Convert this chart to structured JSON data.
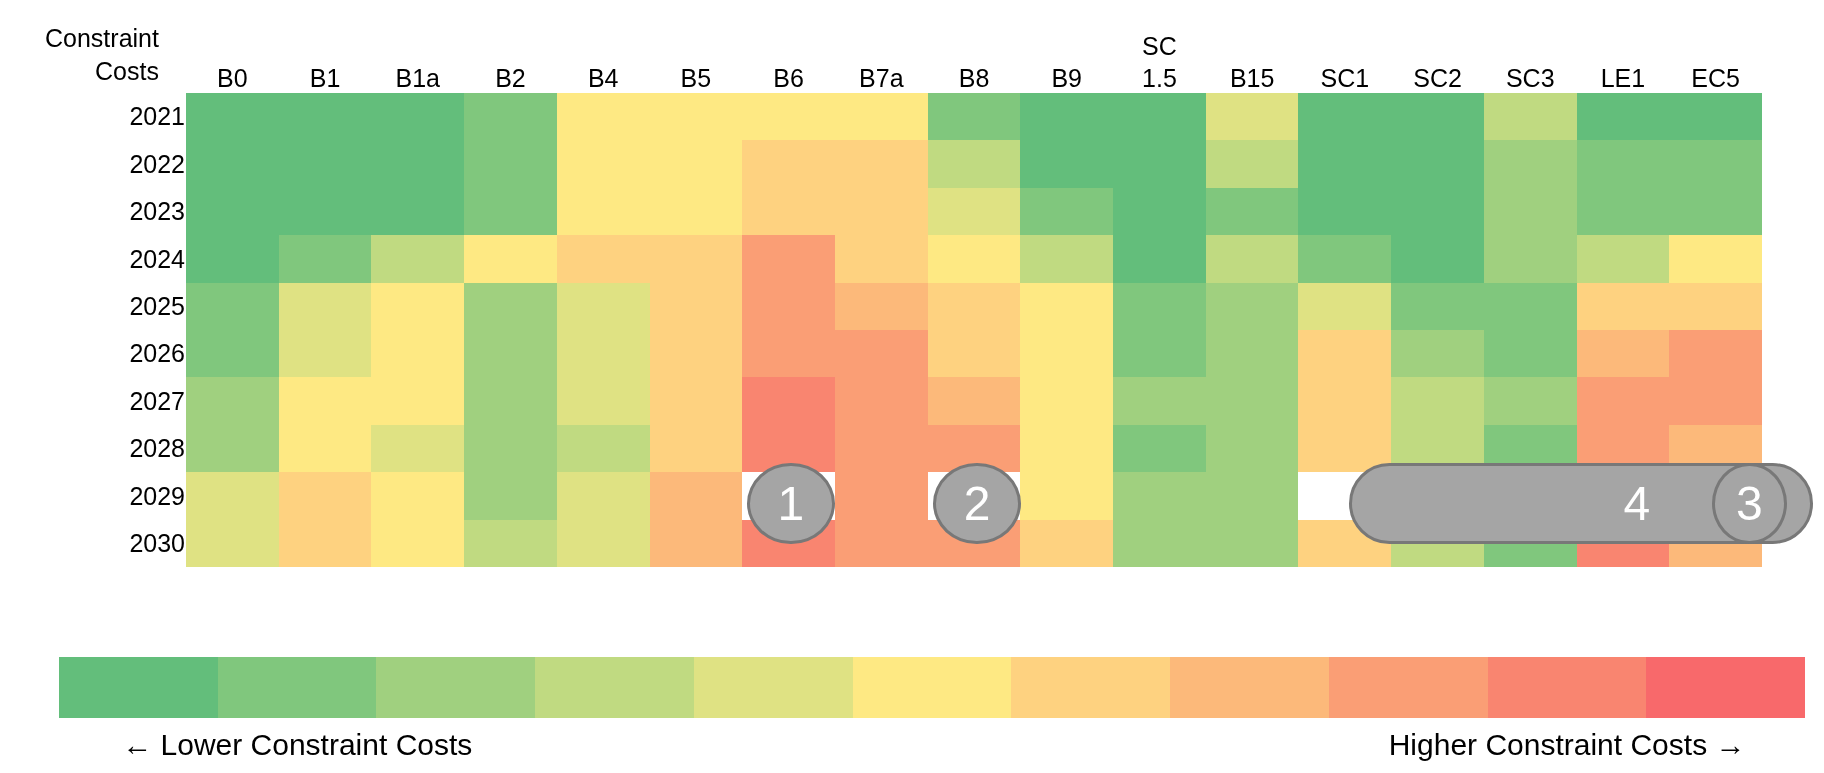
{
  "chart_data": {
    "type": "heatmap",
    "ylabel": "Constraint\nCosts",
    "categories": [
      "B0",
      "B1",
      "B1a",
      "B2",
      "B4",
      "B5",
      "B6",
      "B7a",
      "B8",
      "B9",
      "SC\n1.5",
      "B15",
      "SC1",
      "SC2",
      "SC3",
      "LE1",
      "EC5"
    ],
    "y_categories": [
      "2021",
      "2022",
      "2023",
      "2024",
      "2025",
      "2026",
      "2027",
      "2028",
      "2029",
      "2030"
    ],
    "cells": [
      [
        1,
        1,
        1,
        2,
        6,
        6,
        6,
        6,
        2,
        1,
        1,
        5,
        1,
        1,
        4,
        1,
        1
      ],
      [
        1,
        1,
        1,
        2,
        6,
        6,
        7,
        7,
        4,
        1,
        1,
        4,
        1,
        1,
        3,
        2,
        2
      ],
      [
        1,
        1,
        1,
        2,
        6,
        6,
        7,
        7,
        5,
        2,
        1,
        2,
        1,
        1,
        3,
        2,
        2
      ],
      [
        1,
        2,
        4,
        6,
        7,
        7,
        9,
        7,
        6,
        4,
        1,
        4,
        2,
        1,
        3,
        4,
        6
      ],
      [
        2,
        5,
        6,
        3,
        5,
        7,
        9,
        8,
        7,
        6,
        2,
        3,
        5,
        2,
        2,
        7,
        7
      ],
      [
        2,
        5,
        6,
        3,
        5,
        7,
        9,
        9,
        7,
        6,
        2,
        3,
        7,
        3,
        2,
        8,
        9
      ],
      [
        3,
        6,
        6,
        3,
        5,
        7,
        10,
        9,
        8,
        6,
        3,
        3,
        7,
        4,
        3,
        9,
        9
      ],
      [
        3,
        6,
        5,
        3,
        4,
        7,
        10,
        9,
        9,
        6,
        2,
        3,
        7,
        4,
        2,
        9,
        8
      ],
      [
        5,
        7,
        6,
        3,
        5,
        8,
        null,
        9,
        null,
        6,
        3,
        3,
        null,
        null,
        null,
        null,
        null
      ],
      [
        5,
        7,
        6,
        4,
        5,
        8,
        10,
        9,
        9,
        7,
        3,
        3,
        7,
        4,
        2,
        10,
        8
      ]
    ],
    "clim": [
      0.5,
      11.5
    ],
    "cticks": [
      {
        "value": 2,
        "label": "← Lower Constraint Costs"
      },
      {
        "value": 10,
        "label": "Higher Constraint Costs →"
      }
    ],
    "annotations": [
      "1",
      "2",
      "3",
      "4"
    ]
  }
}
